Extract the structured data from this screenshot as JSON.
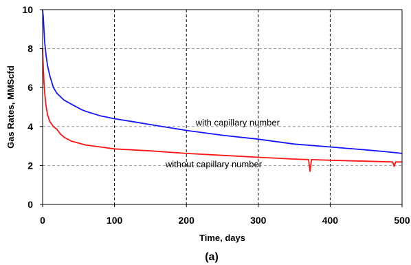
{
  "chart_data": {
    "type": "line",
    "xlabel": "Time, days",
    "ylabel": "Gas Rates, MMScfd",
    "xlim": [
      0,
      500
    ],
    "ylim": [
      0,
      10
    ],
    "x_ticks": [
      "0",
      "100",
      "200",
      "300",
      "400",
      "500"
    ],
    "y_ticks": [
      "0",
      "2",
      "4",
      "6",
      "8",
      "10"
    ],
    "grid": "dashed",
    "caption": "(a)",
    "annotations": [
      {
        "text": "with capillary number",
        "x": 213,
        "y": 4.05
      },
      {
        "text": "without capillary number",
        "x": 171,
        "y": 1.9
      }
    ],
    "series": [
      {
        "name": "with capillary number",
        "color": "#1515ff",
        "x": [
          0,
          1,
          2,
          3,
          5,
          7,
          10,
          15,
          20,
          30,
          40,
          50,
          55,
          60,
          80,
          100,
          125,
          150,
          200,
          250,
          300,
          350,
          400,
          450,
          480,
          500
        ],
        "y": [
          10,
          9.6,
          8.9,
          8.3,
          7.6,
          7.1,
          6.6,
          6.0,
          5.7,
          5.35,
          5.15,
          4.95,
          4.85,
          4.78,
          4.55,
          4.4,
          4.25,
          4.1,
          3.8,
          3.55,
          3.35,
          3.1,
          2.95,
          2.8,
          2.7,
          2.62
        ]
      },
      {
        "name": "without capillary number",
        "color": "#ff1515",
        "x": [
          0,
          1,
          2,
          3,
          5,
          7,
          10,
          15,
          20,
          25,
          30,
          40,
          50,
          60,
          80,
          100,
          150,
          200,
          250,
          300,
          350,
          370,
          372,
          374,
          400,
          450,
          487,
          489,
          491,
          500
        ],
        "y": [
          8.0,
          7.0,
          6.2,
          5.7,
          5.0,
          4.6,
          4.25,
          4.0,
          3.85,
          3.6,
          3.45,
          3.25,
          3.15,
          3.05,
          2.95,
          2.85,
          2.75,
          2.62,
          2.52,
          2.42,
          2.33,
          2.3,
          1.7,
          2.3,
          2.27,
          2.22,
          2.18,
          1.95,
          2.18,
          2.18
        ]
      }
    ]
  }
}
